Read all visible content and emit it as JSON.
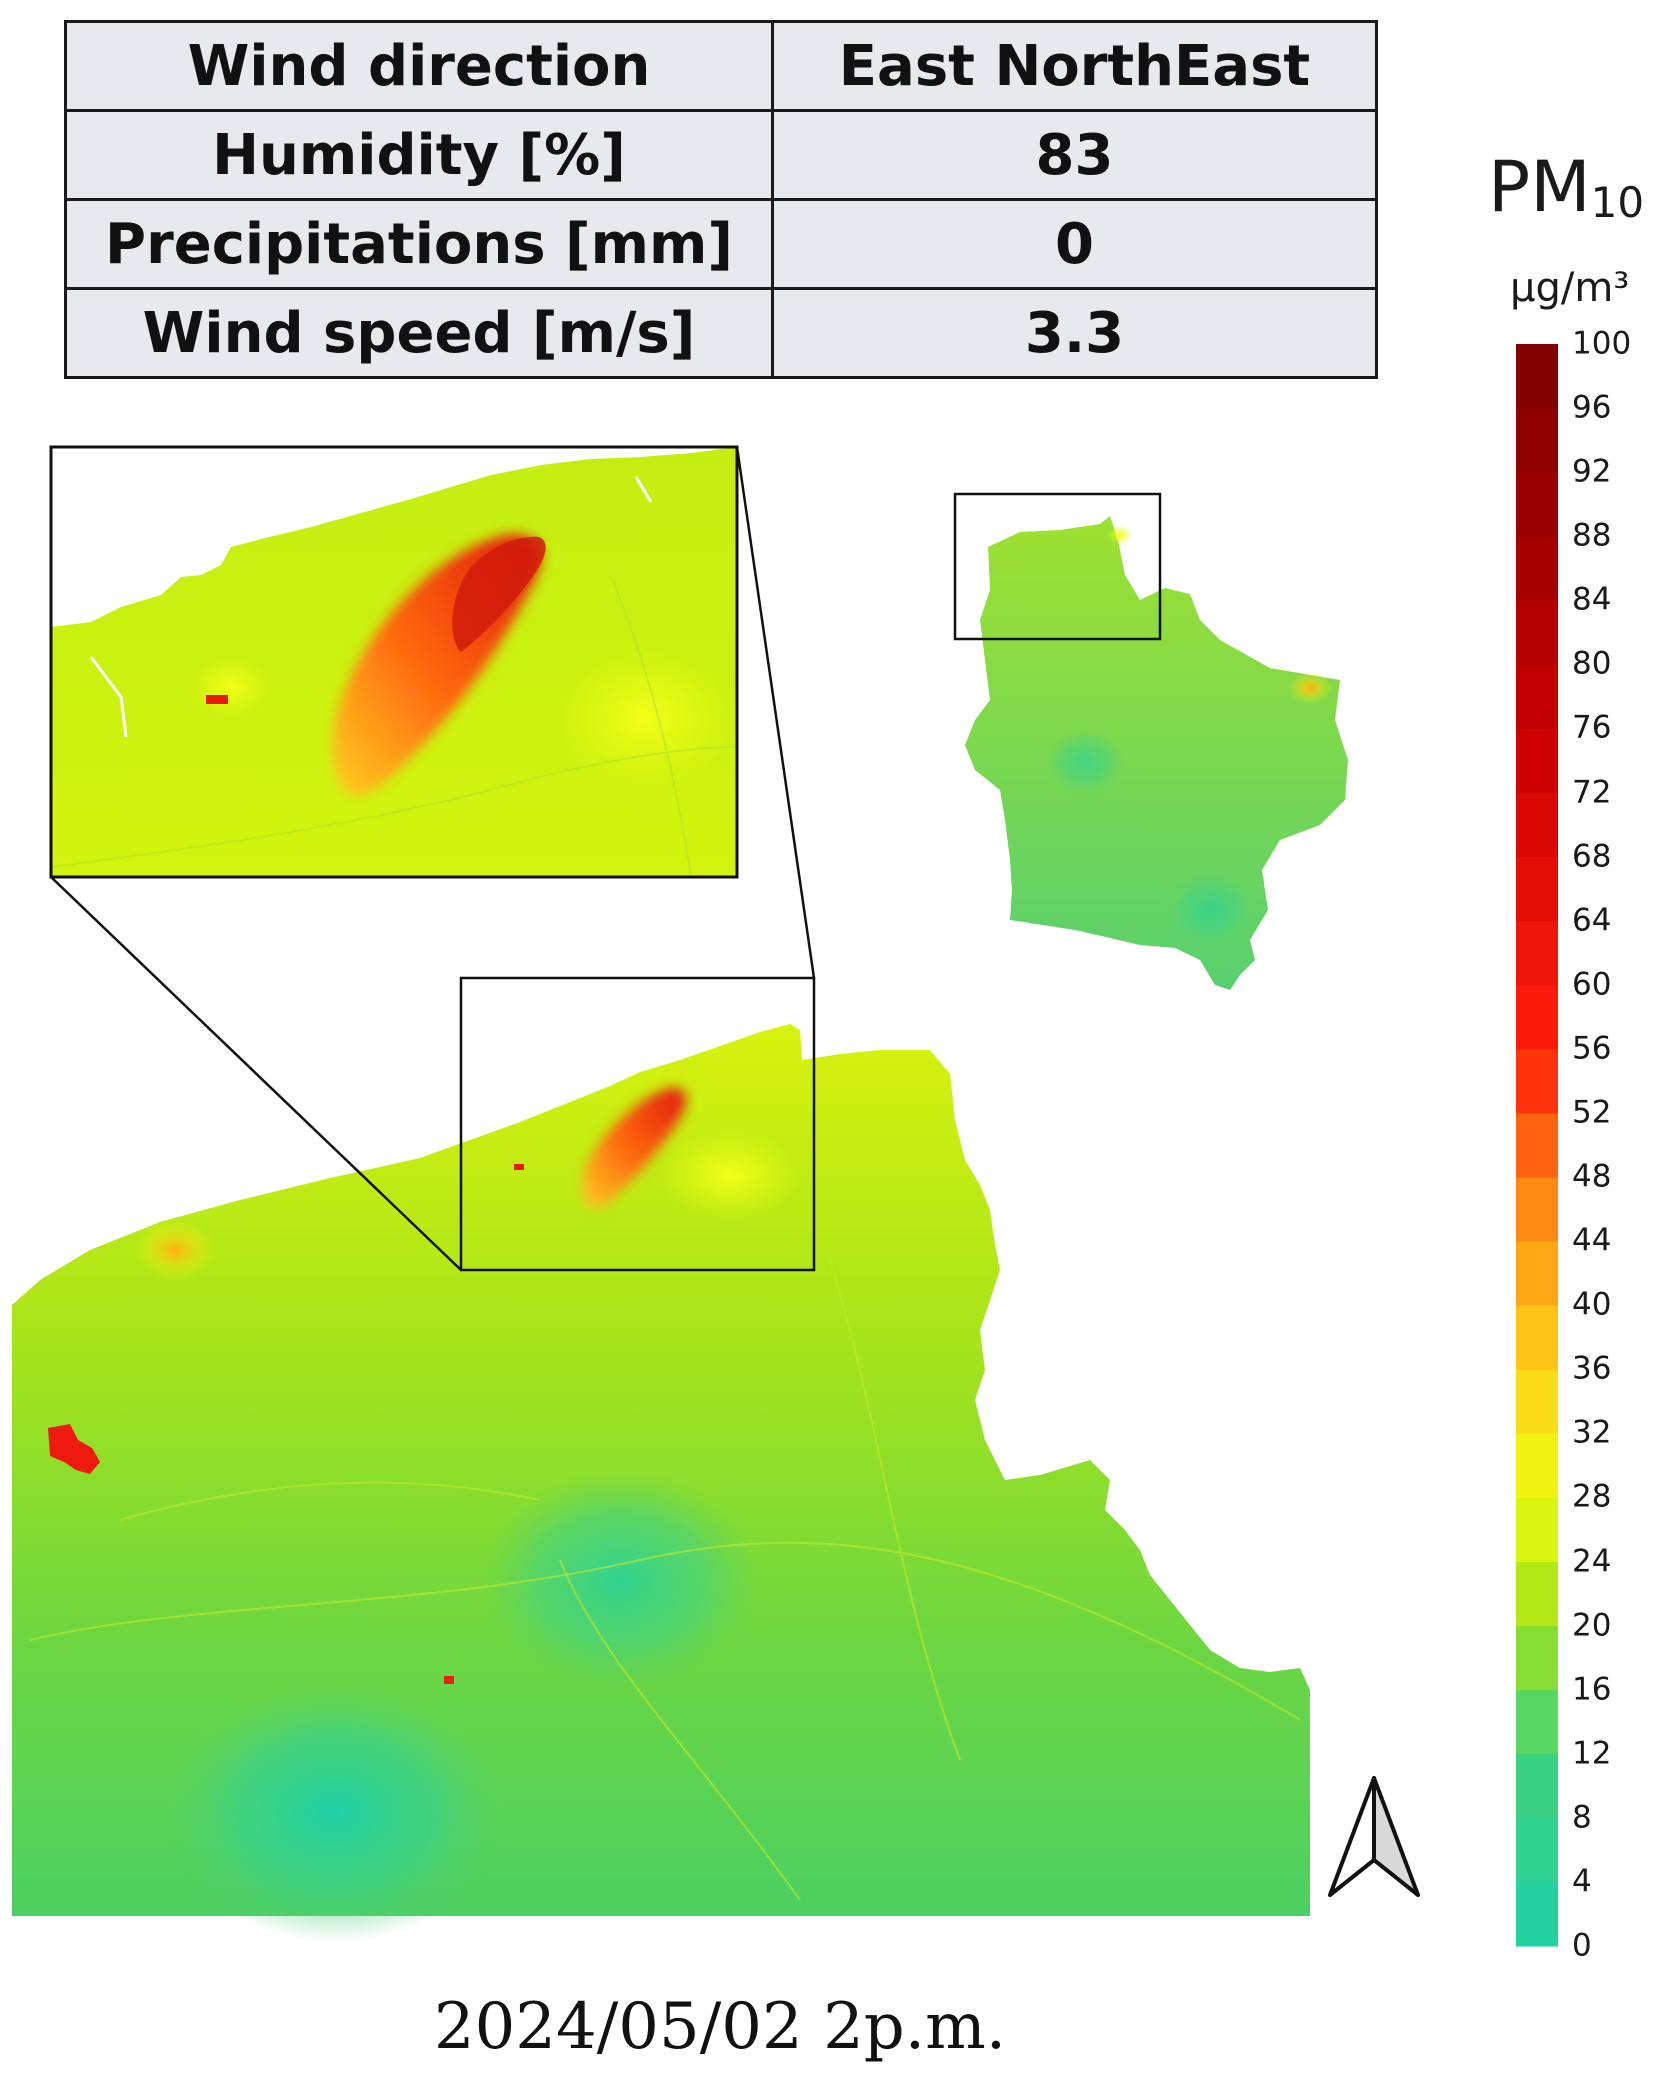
{
  "weather": {
    "rows": [
      {
        "label": "Wind direction",
        "value": "East NorthEast"
      },
      {
        "label": "Humidity [%]",
        "value": "83"
      },
      {
        "label": "Precipitations [mm]",
        "value": "0"
      },
      {
        "label": "Wind speed [m/s]",
        "value": "3.3"
      }
    ]
  },
  "legend": {
    "title_main": "PM",
    "title_sub": "10",
    "unit": "µg/m³",
    "ticks": [
      "100",
      "96",
      "92",
      "88",
      "84",
      "80",
      "76",
      "72",
      "68",
      "64",
      "60",
      "56",
      "52",
      "48",
      "44",
      "40",
      "36",
      "32",
      "28",
      "24",
      "20",
      "16",
      "12",
      "8",
      "4",
      "0"
    ],
    "min": 0,
    "max": 100,
    "step": 4,
    "colors": {
      "0": "#1fd1a8",
      "12": "#3fd27a",
      "20": "#9fe01c",
      "28": "#eefc0c",
      "36": "#ffd21a",
      "48": "#ff7a10",
      "56": "#ff1c0c",
      "76": "#c80000",
      "100": "#7a0000"
    }
  },
  "compass": {
    "icon": "north-arrow-icon"
  },
  "date": "2024/05/02 2p.m."
}
